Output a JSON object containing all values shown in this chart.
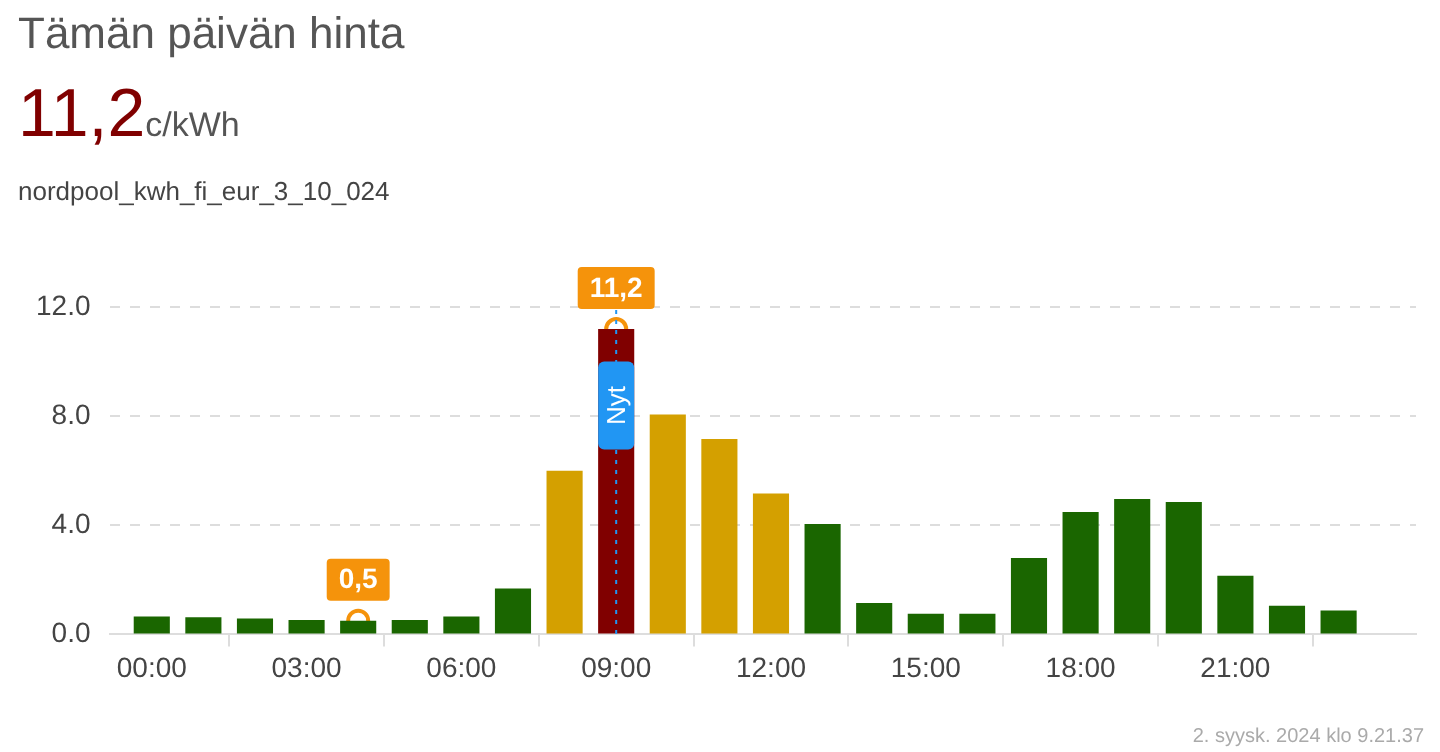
{
  "chart_data": {
    "type": "bar",
    "title": "Tämän päivän hinta",
    "subtitle": "nordpool_kwh_fi_eur_3_10_024",
    "x": [
      0,
      1,
      2,
      3,
      4,
      5,
      6,
      7,
      8,
      9,
      10,
      11,
      12,
      13,
      14,
      15,
      16,
      17,
      18,
      19,
      20,
      21,
      22,
      23
    ],
    "values": [
      0.66,
      0.63,
      0.58,
      0.53,
      0.5,
      0.53,
      0.66,
      1.68,
      6.0,
      11.2,
      8.07,
      7.17,
      5.17,
      4.05,
      1.15,
      0.76,
      0.76,
      2.8,
      4.49,
      4.97,
      4.86,
      2.15,
      1.05,
      0.88
    ],
    "colors": [
      "#1a6600",
      "#1a6600",
      "#1a6600",
      "#1a6600",
      "#1a6600",
      "#1a6600",
      "#1a6600",
      "#1a6600",
      "#d4a000",
      "#800000",
      "#d4a000",
      "#d4a000",
      "#d4a000",
      "#1a6600",
      "#1a6600",
      "#1a6600",
      "#1a6600",
      "#1a6600",
      "#1a6600",
      "#1a6600",
      "#1a6600",
      "#1a6600",
      "#1a6600",
      "#1a6600"
    ],
    "xlim": [
      -0.8,
      24.5
    ],
    "xticks": [
      {
        "value": 0,
        "label": "00:00"
      },
      {
        "value": 3,
        "label": "03:00"
      },
      {
        "value": 6,
        "label": "06:00"
      },
      {
        "value": 9,
        "label": "09:00"
      },
      {
        "value": 12,
        "label": "12:00"
      },
      {
        "value": 15,
        "label": "15:00"
      },
      {
        "value": 18,
        "label": "18:00"
      },
      {
        "value": 21,
        "label": "21:00"
      }
    ],
    "ylim": [
      0,
      13
    ],
    "yticks": [
      {
        "value": 0,
        "label": "0.0"
      },
      {
        "value": 4,
        "label": "4.0"
      },
      {
        "value": 8,
        "label": "8.0"
      },
      {
        "value": 12,
        "label": "12.0"
      }
    ],
    "grid": "y",
    "legend": false,
    "ref_lines": [
      {
        "axis": "x",
        "value": 9,
        "label": "Nyt",
        "color": "#2196f3",
        "line_style": "dotted"
      }
    ],
    "annotations": [
      "11,2",
      "c/kWh",
      "2. syysk. 2024 klo 9.21.37",
      {
        "text": "0,5",
        "x": 4,
        "y": 0.5
      },
      {
        "text": "11,2",
        "x": 9,
        "y": 11.2
      }
    ]
  }
}
